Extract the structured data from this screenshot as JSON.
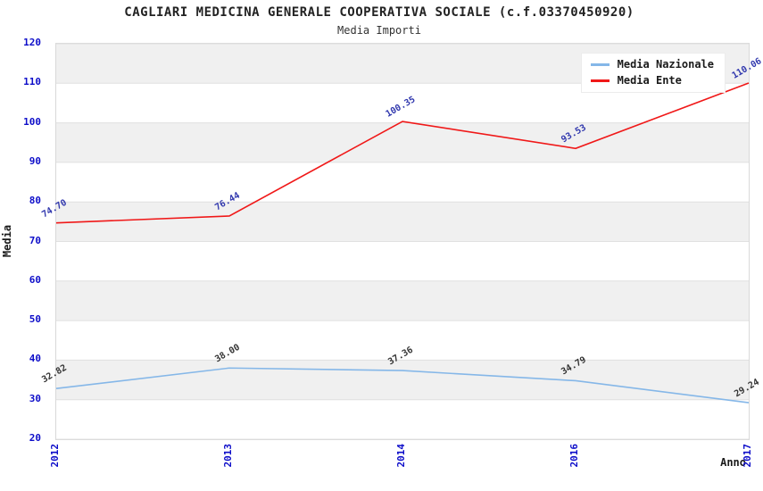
{
  "title": "CAGLIARI MEDICINA GENERALE COOPERATIVA SOCIALE (c.f.03370450920)",
  "subtitle": "Media Importi",
  "chart_data": {
    "type": "line",
    "categories": [
      "2012",
      "2013",
      "2014",
      "2016",
      "2017"
    ],
    "series": [
      {
        "name": "Media Nazionale",
        "color": "#85b7e8",
        "label_color": "#333333",
        "values": [
          32.82,
          38.0,
          37.36,
          34.79,
          29.24
        ],
        "labels": [
          "32.82",
          "38.00",
          "37.36",
          "34.79",
          "29.24"
        ]
      },
      {
        "name": "Media Ente",
        "color": "#f01818",
        "label_color": "#3239ae",
        "values": [
          74.7,
          76.44,
          100.35,
          93.53,
          110.06
        ],
        "labels": [
          "74.70",
          "76.44",
          "100.35",
          "93.53",
          "110.06"
        ]
      }
    ],
    "xlabel": "Anno",
    "ylabel": "Media",
    "ylim": [
      20,
      120
    ],
    "yticks": [
      120,
      110,
      100,
      90,
      80,
      70,
      60,
      50,
      40,
      30,
      20
    ],
    "grid": true,
    "band_colors": [
      "#f0f0f0",
      "#ffffff"
    ],
    "gridline_color": "#e0e0e0",
    "tick_label_color": "#0d0dc9",
    "legend_position": "top-right"
  }
}
